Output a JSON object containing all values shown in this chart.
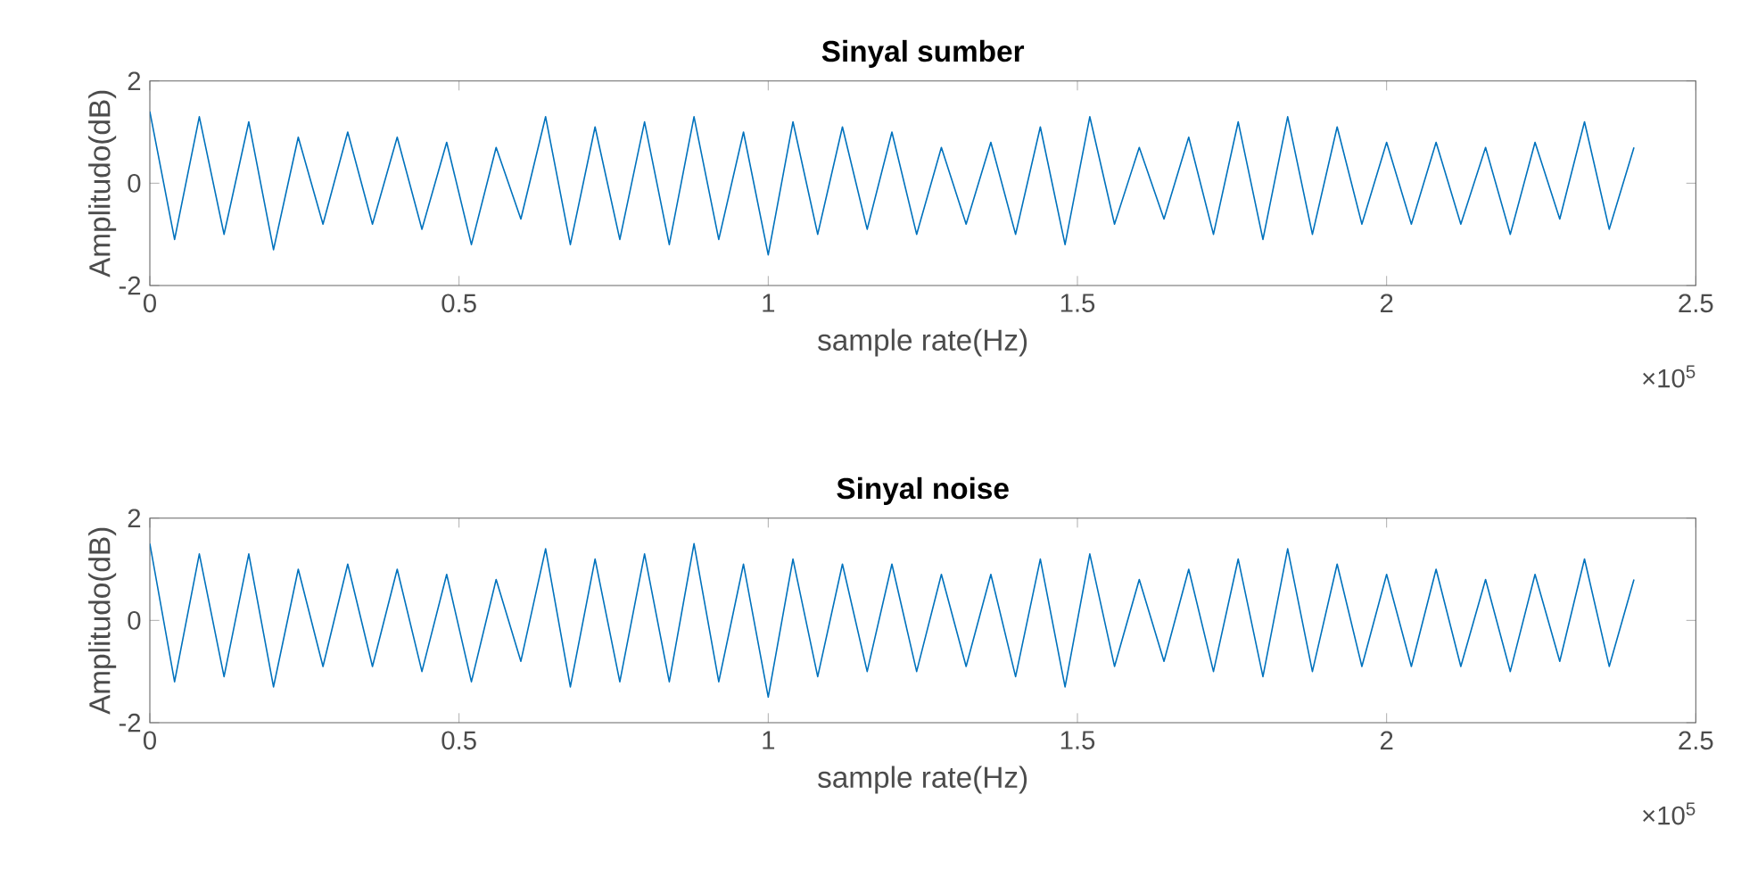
{
  "chart_data": [
    {
      "type": "line",
      "title": "Sinyal sumber",
      "xlabel": "sample rate(Hz)",
      "ylabel": "Amplitudo(dB)",
      "color": "#0072bd",
      "x": [
        0,
        0.04,
        0.08,
        0.12,
        0.16,
        0.2,
        0.24,
        0.28,
        0.32,
        0.36,
        0.4,
        0.44,
        0.48,
        0.52,
        0.56,
        0.6,
        0.64,
        0.68,
        0.72,
        0.76,
        0.8,
        0.84,
        0.88,
        0.92,
        0.96,
        1.0,
        1.04,
        1.08,
        1.12,
        1.16,
        1.2,
        1.24,
        1.28,
        1.32,
        1.36,
        1.4,
        1.44,
        1.48,
        1.52,
        1.56,
        1.6,
        1.64,
        1.68,
        1.72,
        1.76,
        1.8,
        1.84,
        1.88,
        1.92,
        1.96,
        2.0,
        2.04,
        2.08,
        2.12,
        2.16,
        2.2,
        2.24,
        2.28,
        2.32,
        2.36,
        2.4
      ],
      "values": [
        1.4,
        -1.1,
        1.3,
        -1.0,
        1.2,
        -1.3,
        0.9,
        -0.8,
        1.0,
        -0.8,
        0.9,
        -0.9,
        0.8,
        -1.2,
        0.7,
        -0.7,
        1.3,
        -1.2,
        1.1,
        -1.1,
        1.2,
        -1.2,
        1.3,
        -1.1,
        1.0,
        -1.4,
        1.2,
        -1.0,
        1.1,
        -0.9,
        1.0,
        -1.0,
        0.7,
        -0.8,
        0.8,
        -1.0,
        1.1,
        -1.2,
        1.3,
        -0.8,
        0.7,
        -0.7,
        0.9,
        -1.0,
        1.2,
        -1.1,
        1.3,
        -1.0,
        1.1,
        -0.8,
        0.8,
        -0.8,
        0.8,
        -0.8,
        0.7,
        -1.0,
        0.8,
        -0.7,
        1.2,
        -0.9,
        0.7
      ],
      "xlim": [
        0,
        2.5
      ],
      "xticks": [
        0,
        0.5,
        1,
        1.5,
        2,
        2.5
      ],
      "ylim": [
        -2,
        2
      ],
      "yticks": [
        -2,
        0,
        2
      ],
      "annotations": [
        "×10$^{5}$"
      ]
    },
    {
      "type": "line",
      "title": "Sinyal noise",
      "xlabel": "sample rate(Hz)",
      "ylabel": "Amplitudo(dB)",
      "color": "#0072bd",
      "x": [
        0,
        0.04,
        0.08,
        0.12,
        0.16,
        0.2,
        0.24,
        0.28,
        0.32,
        0.36,
        0.4,
        0.44,
        0.48,
        0.52,
        0.56,
        0.6,
        0.64,
        0.68,
        0.72,
        0.76,
        0.8,
        0.84,
        0.88,
        0.92,
        0.96,
        1.0,
        1.04,
        1.08,
        1.12,
        1.16,
        1.2,
        1.24,
        1.28,
        1.32,
        1.36,
        1.4,
        1.44,
        1.48,
        1.52,
        1.56,
        1.6,
        1.64,
        1.68,
        1.72,
        1.76,
        1.8,
        1.84,
        1.88,
        1.92,
        1.96,
        2.0,
        2.04,
        2.08,
        2.12,
        2.16,
        2.2,
        2.24,
        2.28,
        2.32,
        2.36,
        2.4
      ],
      "values": [
        1.5,
        -1.2,
        1.3,
        -1.1,
        1.3,
        -1.3,
        1.0,
        -0.9,
        1.1,
        -0.9,
        1.0,
        -1.0,
        0.9,
        -1.2,
        0.8,
        -0.8,
        1.4,
        -1.3,
        1.2,
        -1.2,
        1.3,
        -1.2,
        1.5,
        -1.2,
        1.1,
        -1.5,
        1.2,
        -1.1,
        1.1,
        -1.0,
        1.1,
        -1.0,
        0.9,
        -0.9,
        0.9,
        -1.1,
        1.2,
        -1.3,
        1.3,
        -0.9,
        0.8,
        -0.8,
        1.0,
        -1.0,
        1.2,
        -1.1,
        1.4,
        -1.0,
        1.1,
        -0.9,
        0.9,
        -0.9,
        1.0,
        -0.9,
        0.8,
        -1.0,
        0.9,
        -0.8,
        1.2,
        -0.9,
        0.8
      ],
      "xlim": [
        0,
        2.5
      ],
      "xticks": [
        0,
        0.5,
        1,
        1.5,
        2,
        2.5
      ],
      "ylim": [
        -2,
        2
      ],
      "yticks": [
        -2,
        0,
        2
      ],
      "annotations": [
        "×10$^{5}$"
      ]
    }
  ]
}
